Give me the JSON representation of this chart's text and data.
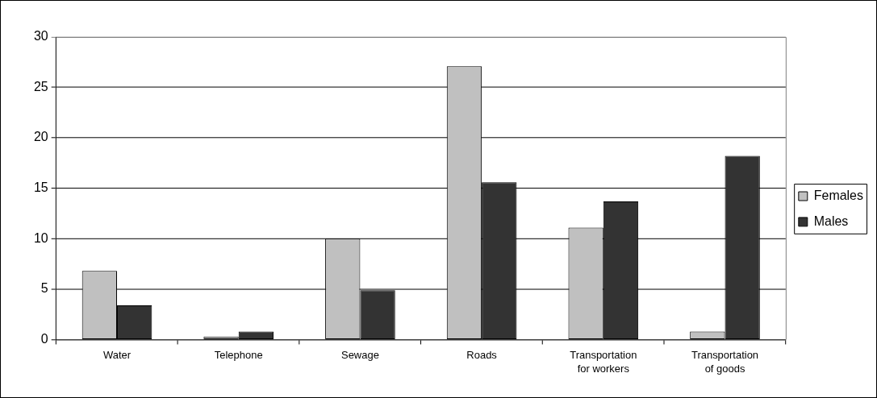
{
  "chart_data": {
    "type": "bar",
    "categories": [
      "Water",
      "Telephone",
      "Sewage",
      "Roads",
      "Transportation for workers",
      "Transportation of goods"
    ],
    "series": [
      {
        "name": "Females",
        "color": "#c0c0c0",
        "values": [
          6.8,
          0.3,
          10,
          27.1,
          11.1,
          0.8
        ]
      },
      {
        "name": "Males",
        "color": "#333333",
        "values": [
          3.4,
          0.8,
          4.9,
          15.6,
          13.7,
          18.2
        ]
      }
    ],
    "ylim": [
      0,
      30
    ],
    "yticks": [
      0,
      5,
      10,
      15,
      20,
      25,
      30
    ],
    "grid": "y",
    "legend": "right"
  }
}
